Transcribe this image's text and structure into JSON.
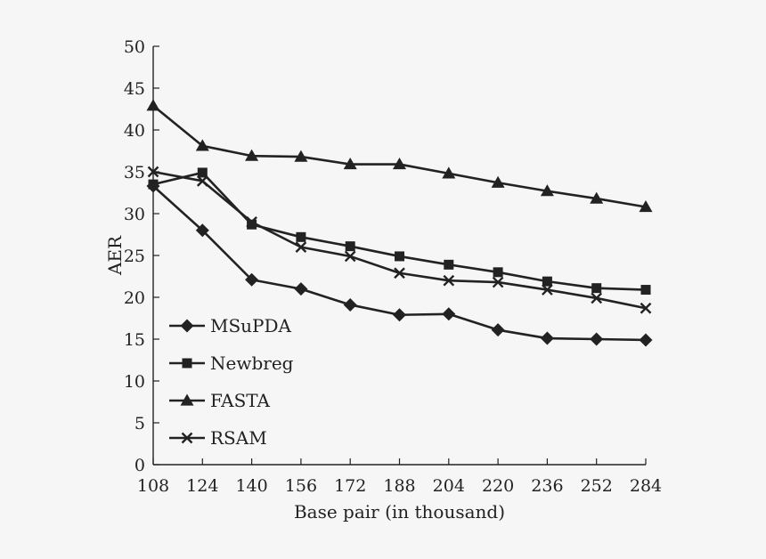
{
  "chart_data": {
    "type": "line",
    "xlabel": "Base pair (in thousand)",
    "ylabel": "AER",
    "categories": [
      "108",
      "124",
      "140",
      "156",
      "172",
      "188",
      "204",
      "220",
      "236",
      "252",
      "284"
    ],
    "ylim": [
      0,
      50
    ],
    "yticks": [
      0,
      5,
      10,
      15,
      20,
      25,
      30,
      35,
      40,
      45,
      50
    ],
    "grid": false,
    "legend_position": "bottom-left",
    "colors": {
      "line": "#222222",
      "background": "#f6f6f6"
    },
    "series": [
      {
        "name": "MSuPDA",
        "marker": "diamond",
        "values": [
          33.3,
          28.0,
          22.1,
          21.0,
          19.1,
          17.9,
          18.0,
          16.1,
          15.1,
          15.0,
          14.9
        ]
      },
      {
        "name": "Newbreg",
        "marker": "square",
        "values": [
          33.5,
          34.9,
          28.7,
          27.2,
          26.1,
          24.9,
          23.9,
          23.0,
          21.9,
          21.1,
          20.9
        ]
      },
      {
        "name": "FASTA",
        "marker": "triangle",
        "values": [
          42.9,
          38.1,
          36.9,
          36.8,
          35.9,
          35.9,
          34.8,
          33.7,
          32.7,
          31.8,
          30.8
        ]
      },
      {
        "name": "RSAM",
        "marker": "cross",
        "values": [
          35.0,
          33.9,
          29.0,
          26.0,
          24.9,
          22.9,
          22.0,
          21.8,
          20.9,
          19.9,
          18.7
        ]
      }
    ]
  }
}
